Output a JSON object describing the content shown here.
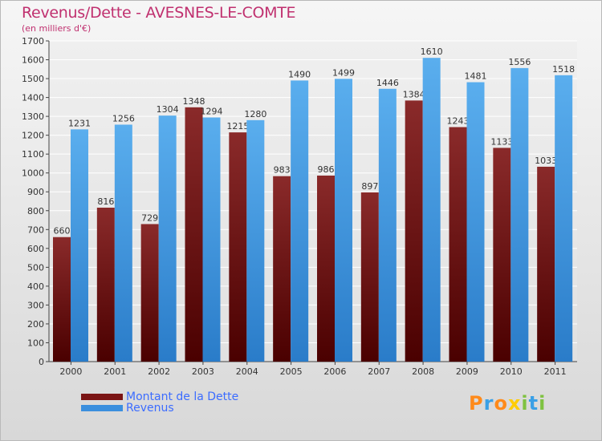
{
  "header": {
    "title": "Revenus/Dette - AVESNES-LE-COMTE",
    "subtitle": "(en milliers d'€)"
  },
  "legend": {
    "items": [
      {
        "label": "Montant de la Dette",
        "color": "#7a1414"
      },
      {
        "label": "Revenus",
        "color": "#3b8fde"
      }
    ]
  },
  "brand": {
    "letters": [
      "P",
      "r",
      "o",
      "x",
      "i",
      "t",
      "i"
    ],
    "colors": [
      "#ff8a1a",
      "#3aa0e6",
      "#ff8a1a",
      "#ffcc00",
      "#7fc241",
      "#3aa0e6",
      "#7fc241"
    ]
  },
  "chart_data": {
    "type": "bar",
    "title": "Revenus/Dette - AVESNES-LE-COMTE",
    "ylabel": "(en milliers d'€)",
    "xlabel": "",
    "categories": [
      "2000",
      "2001",
      "2002",
      "2003",
      "2004",
      "2005",
      "2006",
      "2007",
      "2008",
      "2009",
      "2010",
      "2011"
    ],
    "series": [
      {
        "name": "Montant de la Dette",
        "values": [
          660,
          816,
          729,
          1348,
          1215,
          983,
          986,
          897,
          1384,
          1243,
          1133,
          1033
        ],
        "labels": [
          "660",
          "816",
          "729",
          "1348",
          "1215",
          "983",
          "986",
          "897",
          "1384",
          "1243",
          "1133",
          "1033"
        ]
      },
      {
        "name": "Revenus",
        "values": [
          1231,
          1256,
          1304,
          1294,
          1280,
          1490,
          1499,
          1446,
          1610,
          1481,
          1556,
          1518
        ],
        "labels": [
          "1231",
          "1256",
          "1304",
          "1294",
          "1280",
          "1490",
          "1499",
          "1446",
          "1610",
          "1481",
          "1556",
          "1518"
        ]
      }
    ],
    "ylim": [
      0,
      1700
    ],
    "yticks": [
      0,
      100,
      200,
      300,
      400,
      500,
      600,
      700,
      800,
      900,
      1000,
      1100,
      1200,
      1300,
      1400,
      1500,
      1600,
      1700
    ],
    "grid": true,
    "legend_position": "bottom-left"
  }
}
